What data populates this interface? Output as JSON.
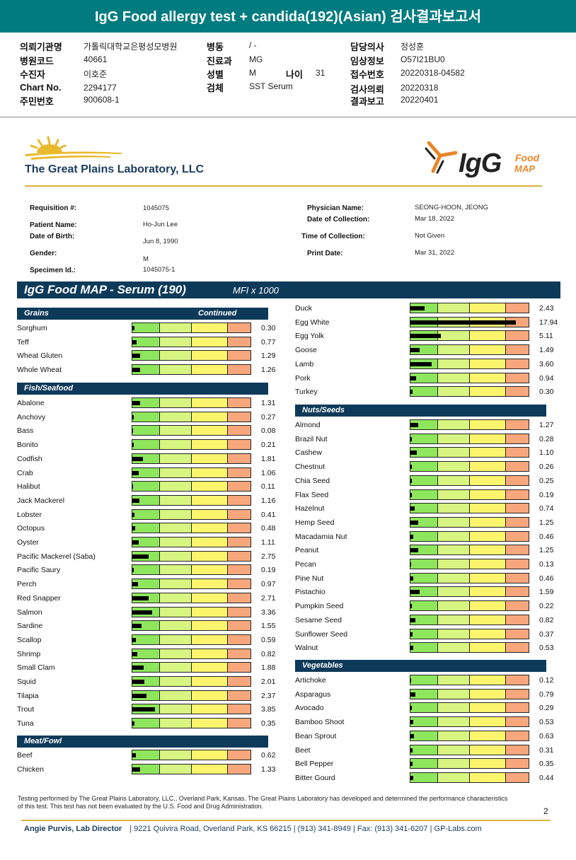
{
  "report_title": "IgG Food allergy test + candida(192)(Asian) 검사결과보고서",
  "header": {
    "col1": [
      {
        "label": "의뢰기관명",
        "value": "가톨릭대학교은평성모병원"
      },
      {
        "label": "병원코드",
        "value": "40661"
      },
      {
        "label": "수진자",
        "value": "이호준"
      },
      {
        "label": "Chart No.",
        "value": "2294177"
      },
      {
        "label": "주민번호",
        "value": "900608-1"
      }
    ],
    "col2": [
      {
        "label": "병동",
        "value": "/ -"
      },
      {
        "label": "진료과",
        "value": "MG"
      },
      {
        "label": "성별",
        "value": "M"
      },
      {
        "label": "검체",
        "value": "SST Serum"
      }
    ],
    "age": {
      "label": "나이",
      "value": "31"
    },
    "col3": [
      {
        "label": "담당의사",
        "value": "정성훈"
      },
      {
        "label": "임상정보",
        "value": "O57I21BU0"
      },
      {
        "label": "접수번호",
        "value": "20220318-04582"
      },
      {
        "label": "검사의뢰",
        "value": "20220318"
      },
      {
        "label": "결과보고",
        "value": "20220401"
      }
    ]
  },
  "lab": {
    "name": "The Great Plains Laboratory, LLC",
    "logo_word": "IgG",
    "logo_food": "Food",
    "logo_map": "MAP"
  },
  "patient": {
    "left": [
      {
        "label": "Requisition #:",
        "value": "1045075"
      },
      {
        "label": "Patient Name:",
        "value": "Ho-Jun Lee"
      },
      {
        "label": "Date of Birth:",
        "value": "Jun 8, 1990"
      },
      {
        "label": "Gender:",
        "value": "M"
      },
      {
        "label": "Specimen Id.:",
        "value": "1045075-1"
      }
    ],
    "right": [
      {
        "label": "Physician Name:",
        "value": "SEONG-HOON, JEONG"
      },
      {
        "label": "Date of Collection:",
        "value": "Mar 18, 2022"
      },
      {
        "label": "Time of Collection:",
        "value": "Not Given"
      },
      {
        "label": "Print Date:",
        "value": "Mar 31, 2022"
      }
    ]
  },
  "panel": {
    "title": "IgG Food MAP - Serum (190)",
    "unit": "MFI x 1000"
  },
  "chart_data": {
    "type": "bar",
    "title": "IgG Food MAP - Serum (190)",
    "unit": "MFI x 1000",
    "xlim": [
      0,
      20
    ],
    "sections": [
      {
        "name": "Grains",
        "continued": "Continued",
        "items": [
          {
            "food": "Sorghum",
            "value": 0.3
          },
          {
            "food": "Teff",
            "value": 0.77
          },
          {
            "food": "Wheat Gluten",
            "value": 1.29
          },
          {
            "food": "Whole Wheat",
            "value": 1.26
          }
        ]
      },
      {
        "name": "Fish/Seafood",
        "items": [
          {
            "food": "Abalone",
            "value": 1.31
          },
          {
            "food": "Anchovy",
            "value": 0.27
          },
          {
            "food": "Bass",
            "value": 0.08
          },
          {
            "food": "Bonito",
            "value": 0.21
          },
          {
            "food": "Codfish",
            "value": 1.81
          },
          {
            "food": "Crab",
            "value": 1.06
          },
          {
            "food": "Halibut",
            "value": 0.11
          },
          {
            "food": "Jack Mackerel",
            "value": 1.16
          },
          {
            "food": "Lobster",
            "value": 0.41
          },
          {
            "food": "Octopus",
            "value": 0.48
          },
          {
            "food": "Oyster",
            "value": 1.11
          },
          {
            "food": "Pacific Mackerel (Saba)",
            "value": 2.75
          },
          {
            "food": "Pacific Saury",
            "value": 0.19
          },
          {
            "food": "Perch",
            "value": 0.97
          },
          {
            "food": "Red Snapper",
            "value": 2.71
          },
          {
            "food": "Salmon",
            "value": 3.36
          },
          {
            "food": "Sardine",
            "value": 1.55
          },
          {
            "food": "Scallop",
            "value": 0.59
          },
          {
            "food": "Shrimp",
            "value": 0.82
          },
          {
            "food": "Small Clam",
            "value": 1.88
          },
          {
            "food": "Squid",
            "value": 2.01
          },
          {
            "food": "Tilapia",
            "value": 2.37
          },
          {
            "food": "Trout",
            "value": 3.85
          },
          {
            "food": "Tuna",
            "value": 0.35
          }
        ]
      },
      {
        "name": "Meat/Fowl",
        "items": [
          {
            "food": "Beef",
            "value": 0.62
          },
          {
            "food": "Chicken",
            "value": 1.33
          },
          {
            "food": "Duck",
            "value": 2.43
          },
          {
            "food": "Egg White",
            "value": 17.94
          },
          {
            "food": "Egg Yolk",
            "value": 5.11
          },
          {
            "food": "Goose",
            "value": 1.49
          },
          {
            "food": "Lamb",
            "value": 3.6
          },
          {
            "food": "Pork",
            "value": 0.94
          },
          {
            "food": "Turkey",
            "value": 0.3
          }
        ]
      },
      {
        "name": "Nuts/Seeds",
        "items": [
          {
            "food": "Almond",
            "value": 1.27
          },
          {
            "food": "Brazil Nut",
            "value": 0.28
          },
          {
            "food": "Cashew",
            "value": 1.1
          },
          {
            "food": "Chestnut",
            "value": 0.26
          },
          {
            "food": "Chia Seed",
            "value": 0.25
          },
          {
            "food": "Flax Seed",
            "value": 0.19
          },
          {
            "food": "Hazelnut",
            "value": 0.74
          },
          {
            "food": "Hemp Seed",
            "value": 1.25
          },
          {
            "food": "Macadamia Nut",
            "value": 0.46
          },
          {
            "food": "Peanut",
            "value": 1.25
          },
          {
            "food": "Pecan",
            "value": 0.13
          },
          {
            "food": "Pine Nut",
            "value": 0.46
          },
          {
            "food": "Pistachio",
            "value": 1.59
          },
          {
            "food": "Pumpkin Seed",
            "value": 0.22
          },
          {
            "food": "Sesame Seed",
            "value": 0.82
          },
          {
            "food": "Sunflower Seed",
            "value": 0.37
          },
          {
            "food": "Walnut",
            "value": 0.53
          }
        ]
      },
      {
        "name": "Vegetables",
        "items": [
          {
            "food": "Artichoke",
            "value": 0.12
          },
          {
            "food": "Asparagus",
            "value": 0.79
          },
          {
            "food": "Avocado",
            "value": 0.29
          },
          {
            "food": "Bamboo Shoot",
            "value": 0.53
          },
          {
            "food": "Bean Sprout",
            "value": 0.63
          },
          {
            "food": "Beet",
            "value": 0.31
          },
          {
            "food": "Bell Pepper",
            "value": 0.35
          },
          {
            "food": "Bitter Gourd",
            "value": 0.44
          }
        ]
      }
    ],
    "zone_colors": [
      "#8ee65d",
      "#d8f582",
      "#fbf56e",
      "#f8a77c"
    ]
  },
  "footer": {
    "disclaimer": "Testing performed by The Great Plains Laboratory, LLC., Overland Park, Kansas.  The Great Plains Laboratory has developed and determined the performance characteristics of this test.  This test has not been evaluated by the U.S. Food and Drug Administration.",
    "page_number": "2",
    "director": "Angie Purvis, Lab Director",
    "contact": "|   9221 Quivira Road, Overland Park, KS 66215   |   (913) 341-8949   |   Fax: (913) 341-6207   |   GP-Labs.com"
  },
  "colors": {
    "teal": "#007b7f",
    "navy": "#0e3a5a",
    "gold": "#d9b43a",
    "orange": "#e8862a"
  }
}
